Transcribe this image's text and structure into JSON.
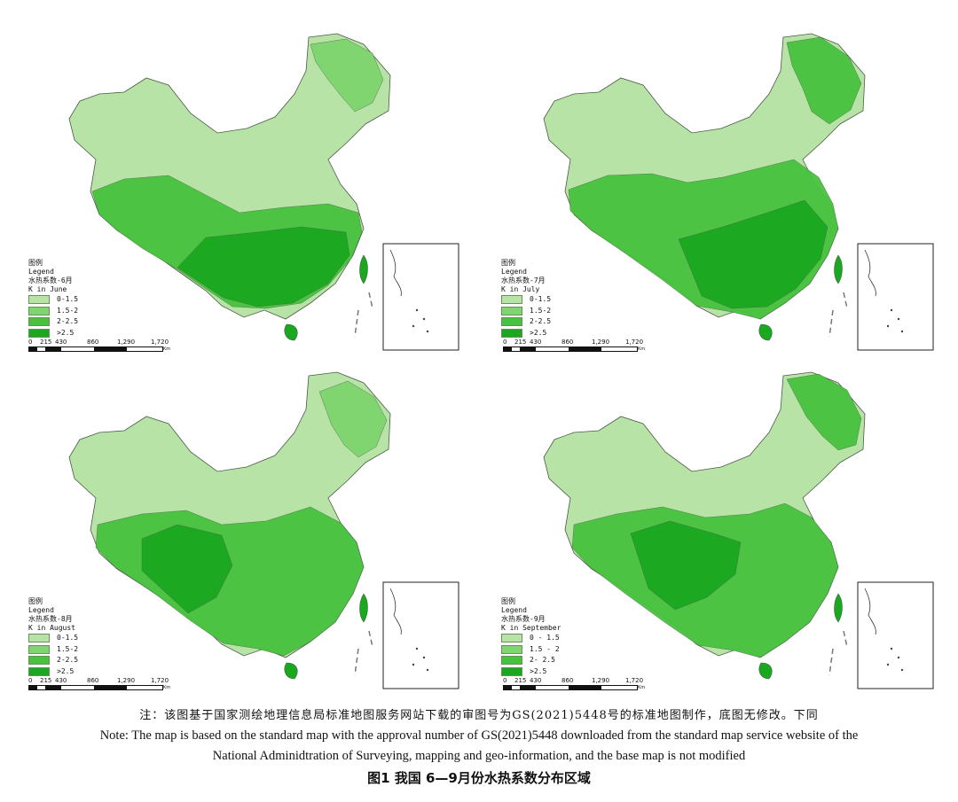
{
  "maps": [
    {
      "id": "june",
      "legend": {
        "cn": "图例",
        "en": "Legend",
        "title_cn": "水热系数-6月",
        "title_en": "K in June",
        "classes": [
          "0-1.5",
          "1.5-2",
          "2-2.5",
          ">2.5"
        ]
      }
    },
    {
      "id": "july",
      "legend": {
        "cn": "图例",
        "en": "Legend",
        "title_cn": "水热系数-7月",
        "title_en": "K in July",
        "classes": [
          "0-1.5",
          "1.5-2",
          "2-2.5",
          ">2.5"
        ]
      }
    },
    {
      "id": "august",
      "legend": {
        "cn": "图例",
        "en": "Legend",
        "title_cn": "水热系数-8月",
        "title_en": "K in August",
        "classes": [
          "0-1.5",
          "1.5-2",
          "2-2.5",
          ">2.5"
        ]
      }
    },
    {
      "id": "september",
      "legend": {
        "cn": "图例",
        "en": "Legend",
        "title_cn": "水热系数-9月",
        "title_en": "K in September",
        "classes": [
          "0 - 1.5",
          "1.5 - 2",
          "2- 2.5",
          ">2.5"
        ]
      }
    }
  ],
  "class_colors": [
    "#b8e3a6",
    "#7fd56f",
    "#47c23e",
    "#1aa820"
  ],
  "scale_bar": {
    "ticks": [
      "0",
      "215",
      "430",
      "860",
      "1,290",
      "1,720"
    ],
    "unit": "Km"
  },
  "note_cn": "注：该图基于国家测绘地理信息局标准地图服务网站下载的审图号为GS(2021)5448号的标准地图制作，底图无修改。下同",
  "note_en_line1": "Note: The map is based on the standard map with the approval number of GS(2021)5448 downloaded from the standard map service website of the",
  "note_en_line2": "National Adminidtration of Surveying, mapping and geo-information, and the base map is not modified",
  "caption": "图1  我国 6—9月份水热系数分布区域"
}
